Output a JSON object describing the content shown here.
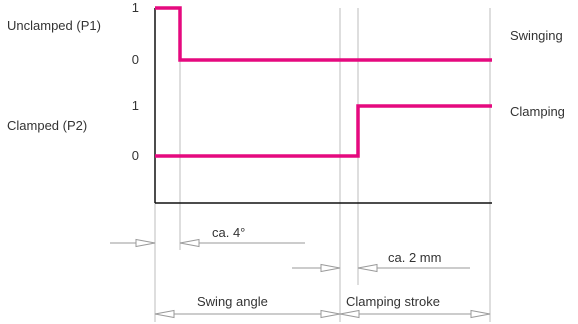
{
  "colors": {
    "signal": "#e5097f",
    "axis": "#111111",
    "grid": "#bdbdbd",
    "dimension": "#9a9a9a",
    "text": "#333333"
  },
  "signals": {
    "p1": {
      "label": "Unclamped (P1)",
      "state_label": "Swinging",
      "level_high": "1",
      "level_low": "0"
    },
    "p2": {
      "label": "Clamped (P2)",
      "state_label": "Clamping",
      "level_high": "1",
      "level_low": "0"
    }
  },
  "dimensions": {
    "swing_offset": "ca. 4°",
    "stroke_offset": "ca. 2 mm",
    "swing_angle": "Swing angle",
    "clamping_stroke": "Clamping stroke"
  }
}
